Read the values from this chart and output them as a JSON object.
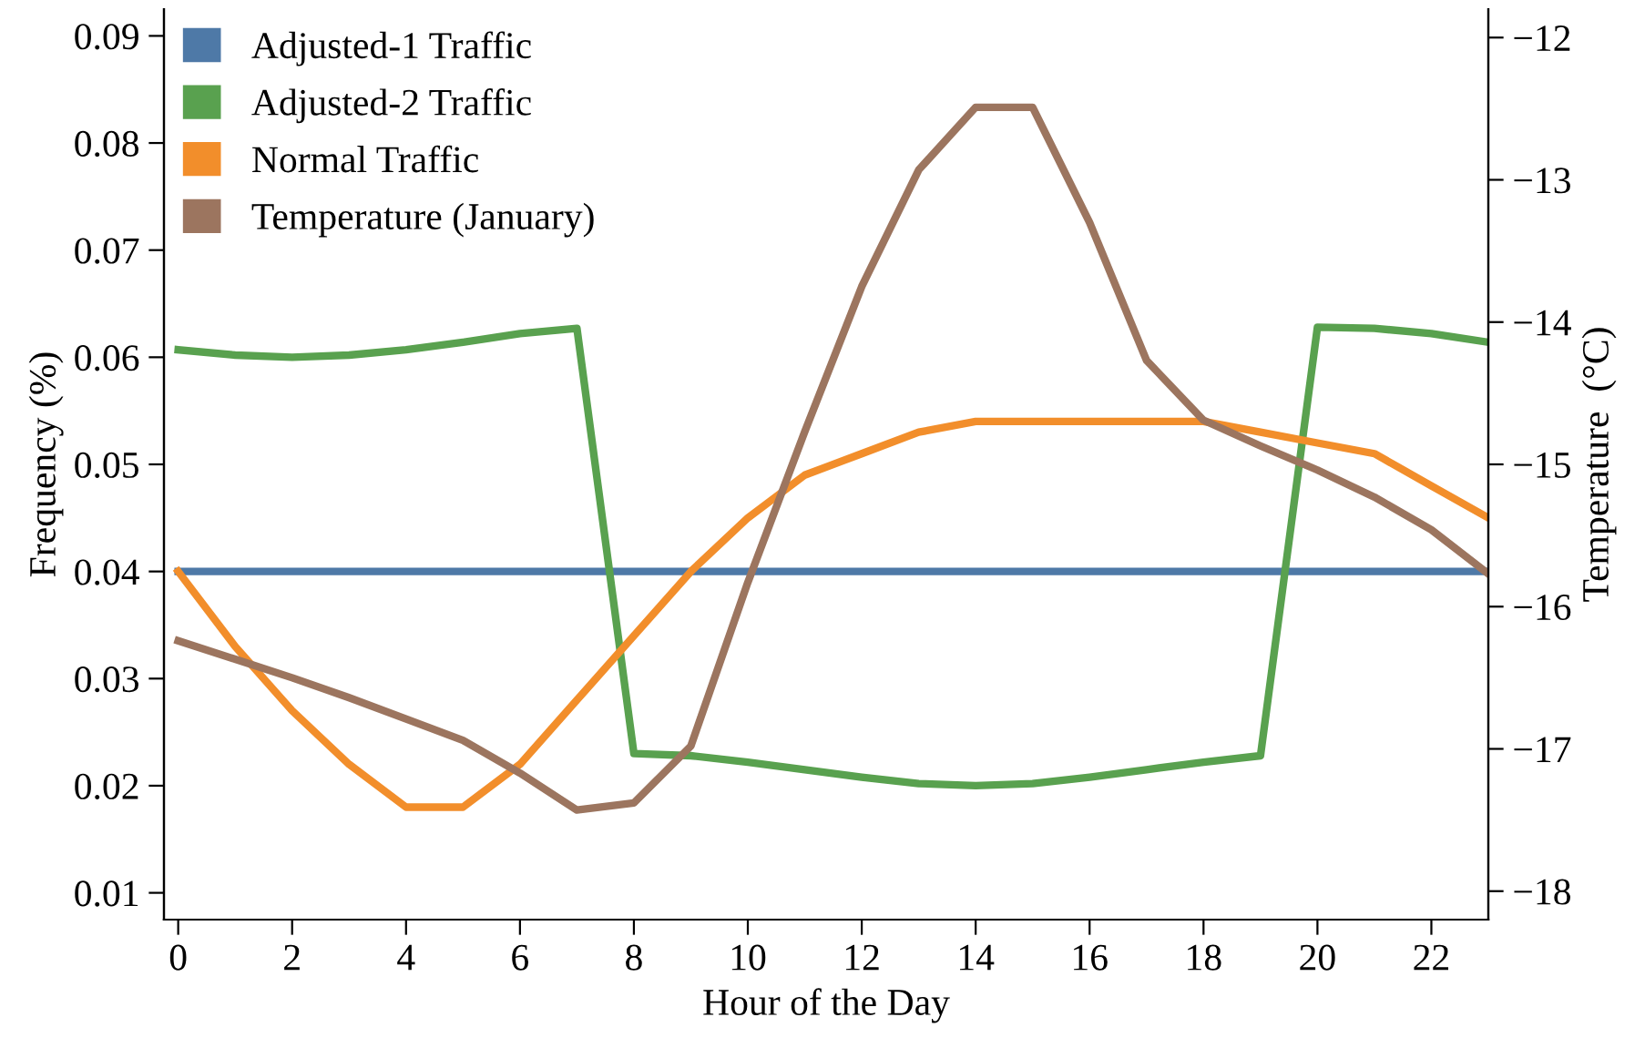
{
  "chart_data": {
    "type": "line",
    "xlabel": "Hour of the Day",
    "ylabel": "Frequency (%)",
    "y2label": "Temperature  (°C)",
    "x": [
      0,
      1,
      2,
      3,
      4,
      5,
      6,
      7,
      8,
      9,
      10,
      11,
      12,
      13,
      14,
      15,
      16,
      17,
      18,
      19,
      20,
      21,
      22,
      23
    ],
    "xlim": [
      -0.25,
      23
    ],
    "xticks": [
      0,
      2,
      4,
      6,
      8,
      10,
      12,
      14,
      16,
      18,
      20,
      22
    ],
    "ylim": [
      0.0075,
      0.0925
    ],
    "yticks": [
      0.01,
      0.02,
      0.03,
      0.04,
      0.05,
      0.06,
      0.07,
      0.08,
      0.09
    ],
    "y2lim": [
      -18.2,
      -11.8
    ],
    "y2ticks": [
      {
        "value": -18,
        "label": "−18"
      },
      {
        "value": -17,
        "label": "−17"
      },
      {
        "value": -16,
        "label": "−16"
      },
      {
        "value": -15,
        "label": "−15"
      },
      {
        "value": -14,
        "label": "−14"
      },
      {
        "value": -13,
        "label": "−13"
      },
      {
        "value": -12,
        "label": "−12"
      }
    ],
    "grid": false,
    "legend": "top left",
    "marker": "none",
    "line_style": "solid",
    "series": [
      {
        "name": "Adjusted-1 Traffic",
        "color": "#4e79a7",
        "values": [
          0.04,
          0.04,
          0.04,
          0.04,
          0.04,
          0.04,
          0.04,
          0.04,
          0.04,
          0.04,
          0.04,
          0.04,
          0.04,
          0.04,
          0.04,
          0.04,
          0.04,
          0.04,
          0.04,
          0.04,
          0.04,
          0.04,
          0.04,
          0.04
        ]
      },
      {
        "name": "Adjusted-2 Traffic",
        "color": "#59a14f",
        "values": [
          0.0607,
          0.0602,
          0.06,
          0.0602,
          0.0607,
          0.0614,
          0.0622,
          0.0627,
          0.023,
          0.0228,
          0.0222,
          0.0215,
          0.0208,
          0.0202,
          0.02,
          0.0202,
          0.0208,
          0.0215,
          0.0222,
          0.0228,
          0.0628,
          0.0627,
          0.0622,
          0.0614
        ]
      },
      {
        "name": "Normal Traffic",
        "color": "#f28e2b",
        "values": [
          0.04,
          0.033,
          0.027,
          0.022,
          0.018,
          0.018,
          0.022,
          0.028,
          0.034,
          0.04,
          0.045,
          0.049,
          0.051,
          0.053,
          0.054,
          0.054,
          0.054,
          0.054,
          0.054,
          0.053,
          0.052,
          0.051,
          0.048,
          0.045
        ]
      },
      {
        "name": "Temperature (January)",
        "color": "#9c755f",
        "axis": "y2",
        "values": [
          -16.24,
          -16.37,
          -16.5,
          -16.64,
          -16.79,
          -16.94,
          -17.17,
          -17.43,
          -17.38,
          -16.98,
          -15.83,
          -14.77,
          -13.75,
          -12.93,
          -12.49,
          -12.49,
          -13.3,
          -14.27,
          -14.69,
          -14.87,
          -15.04,
          -15.23,
          -15.46,
          -15.77
        ]
      }
    ]
  }
}
